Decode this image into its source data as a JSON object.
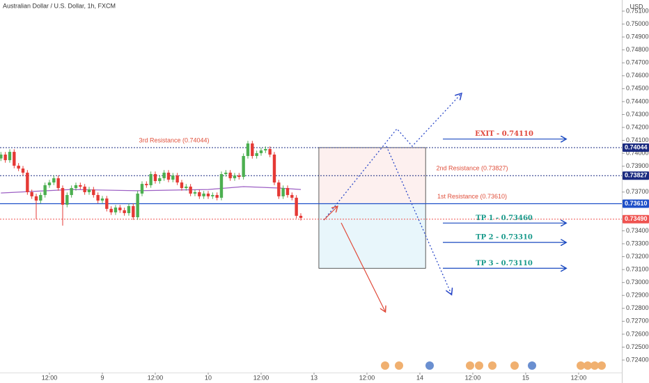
{
  "chart_data": {
    "type": "candlestick",
    "title": "Australian Dollar / U.S. Dollar, 1h, FXCM",
    "y_axis_label": "USD",
    "up_color": "#4caf50",
    "down_color": "#e53935",
    "x": [
      1,
      2,
      3,
      4,
      5,
      6,
      7,
      8,
      9,
      10,
      11,
      12,
      13,
      14,
      15,
      16,
      17,
      18,
      19,
      20,
      21,
      22,
      23,
      24,
      25,
      26,
      27,
      28,
      29,
      30,
      31,
      32,
      33,
      34,
      35,
      36,
      37,
      38,
      39,
      40,
      41,
      42,
      43,
      44,
      45,
      46,
      47,
      48,
      49,
      50,
      51,
      52,
      53,
      54,
      55,
      56,
      57,
      58,
      59,
      60,
      61,
      62,
      63,
      64,
      65,
      66,
      67,
      68,
      69
    ],
    "open": [
      0.7396,
      0.7399,
      0.73947,
      0.74011,
      0.73904,
      0.73882,
      0.7385,
      0.73699,
      0.73667,
      0.73634,
      0.73677,
      0.73753,
      0.73774,
      0.73807,
      0.73731,
      0.73602,
      0.73677,
      0.73731,
      0.73753,
      0.73742,
      0.73699,
      0.7372,
      0.73677,
      0.73634,
      0.7365,
      0.7357,
      0.73543,
      0.7358,
      0.73559,
      0.73537,
      0.73591,
      0.73505,
      0.73688,
      0.73763,
      0.73753,
      0.73839,
      0.73785,
      0.73807,
      0.7385,
      0.73796,
      0.73828,
      0.73774,
      0.73731,
      0.73742,
      0.73688,
      0.73699,
      0.73667,
      0.73688,
      0.73667,
      0.73677,
      0.73656,
      0.73839,
      0.7385,
      0.73807,
      0.73828,
      0.73817,
      0.73979,
      0.74076,
      0.73979,
      0.74001,
      0.74022,
      0.74033,
      0.7399,
      0.73774,
      0.73667,
      0.73731,
      0.73677,
      0.73656,
      0.73516
    ],
    "high": [
      0.7401,
      0.7401,
      0.74031,
      0.74031,
      0.73924,
      0.73902,
      0.7387,
      0.73719,
      0.73687,
      0.73697,
      0.73773,
      0.73794,
      0.73827,
      0.73827,
      0.73751,
      0.73697,
      0.73751,
      0.73773,
      0.73773,
      0.73762,
      0.7374,
      0.7374,
      0.73697,
      0.7367,
      0.7367,
      0.7359,
      0.736,
      0.736,
      0.73579,
      0.73611,
      0.73611,
      0.73708,
      0.73783,
      0.73783,
      0.73859,
      0.73859,
      0.73827,
      0.7387,
      0.7387,
      0.73848,
      0.73848,
      0.73794,
      0.73762,
      0.73762,
      0.73719,
      0.73719,
      0.73708,
      0.73708,
      0.73697,
      0.73697,
      0.73859,
      0.7387,
      0.7387,
      0.73848,
      0.73848,
      0.73999,
      0.74096,
      0.74096,
      0.74021,
      0.74042,
      0.74053,
      0.74053,
      0.7401,
      0.73794,
      0.73751,
      0.73751,
      0.73697,
      0.73676,
      0.73536
    ],
    "low": [
      0.7394,
      0.73927,
      0.73927,
      0.73884,
      0.73862,
      0.7383,
      0.73679,
      0.73647,
      0.7349,
      0.73614,
      0.73657,
      0.73733,
      0.73754,
      0.73711,
      0.7344,
      0.73582,
      0.73657,
      0.73711,
      0.73722,
      0.73679,
      0.73679,
      0.73657,
      0.73614,
      0.73614,
      0.7355,
      0.73523,
      0.73523,
      0.73539,
      0.73517,
      0.73517,
      0.73485,
      0.73485,
      0.73668,
      0.73733,
      0.73733,
      0.73765,
      0.73765,
      0.73787,
      0.73776,
      0.73776,
      0.73754,
      0.73711,
      0.73711,
      0.73668,
      0.73668,
      0.73647,
      0.73647,
      0.73647,
      0.73647,
      0.73636,
      0.73636,
      0.73819,
      0.73787,
      0.73787,
      0.73797,
      0.73797,
      0.73959,
      0.73959,
      0.73959,
      0.73981,
      0.74002,
      0.7397,
      0.73754,
      0.73647,
      0.73647,
      0.73657,
      0.73636,
      0.73496,
      0.7348
    ],
    "close": [
      0.7399,
      0.73947,
      0.74011,
      0.73904,
      0.73882,
      0.7385,
      0.73699,
      0.73667,
      0.73634,
      0.73677,
      0.73753,
      0.73774,
      0.73807,
      0.73731,
      0.73602,
      0.73677,
      0.73731,
      0.73753,
      0.73742,
      0.73699,
      0.7372,
      0.73677,
      0.73634,
      0.7365,
      0.7357,
      0.73543,
      0.7358,
      0.73559,
      0.73537,
      0.73591,
      0.73505,
      0.73688,
      0.73763,
      0.73753,
      0.73839,
      0.73785,
      0.73807,
      0.7385,
      0.73796,
      0.73828,
      0.73774,
      0.73731,
      0.73742,
      0.73688,
      0.73699,
      0.73667,
      0.73688,
      0.73667,
      0.73677,
      0.73656,
      0.73839,
      0.7385,
      0.73807,
      0.73828,
      0.73817,
      0.73979,
      0.74076,
      0.73979,
      0.74001,
      0.74022,
      0.74033,
      0.7399,
      0.73774,
      0.73667,
      0.73731,
      0.73677,
      0.73656,
      0.73516,
      0.735
    ],
    "ma": {
      "color": "#9c5fc4",
      "x": [
        1,
        17,
        32,
        48,
        56,
        64,
        69
      ],
      "values": [
        0.73693,
        0.7372,
        0.7371,
        0.7372,
        0.73742,
        0.73731,
        0.7372
      ]
    },
    "xlim": [
      0.79,
      141.8
    ],
    "xticks": [
      {
        "value": 12,
        "label": "12:00"
      },
      {
        "value": 24,
        "label": "9"
      },
      {
        "value": 36,
        "label": "12:00"
      },
      {
        "value": 48,
        "label": "10"
      },
      {
        "value": 60,
        "label": "12:00"
      },
      {
        "value": 72,
        "label": "13"
      },
      {
        "value": 84,
        "label": "12:00"
      },
      {
        "value": 96,
        "label": "14"
      },
      {
        "value": 108,
        "label": "12:00"
      },
      {
        "value": 120,
        "label": "15"
      },
      {
        "value": 132,
        "label": "12:00"
      }
    ],
    "ylim": [
      0.723031,
      0.751862
    ],
    "yticks": [
      {
        "value": 0.751,
        "label": "0.75100"
      },
      {
        "value": 0.75,
        "label": "0.75000"
      },
      {
        "value": 0.749,
        "label": "0.74900"
      },
      {
        "value": 0.748,
        "label": "0.74800"
      },
      {
        "value": 0.747,
        "label": "0.74700"
      },
      {
        "value": 0.746,
        "label": "0.74600"
      },
      {
        "value": 0.745,
        "label": "0.74500"
      },
      {
        "value": 0.744,
        "label": "0.74400"
      },
      {
        "value": 0.743,
        "label": "0.74300"
      },
      {
        "value": 0.742,
        "label": "0.74200"
      },
      {
        "value": 0.741,
        "label": "0.74100"
      },
      {
        "value": 0.74,
        "label": "0.74000"
      },
      {
        "value": 0.739,
        "label": "0.73900"
      },
      {
        "value": 0.737,
        "label": "0.73700"
      },
      {
        "value": 0.734,
        "label": "0.73400"
      },
      {
        "value": 0.733,
        "label": "0.73300"
      },
      {
        "value": 0.732,
        "label": "0.73200"
      },
      {
        "value": 0.731,
        "label": "0.73100"
      },
      {
        "value": 0.73,
        "label": "0.73000"
      },
      {
        "value": 0.729,
        "label": "0.72900"
      },
      {
        "value": 0.728,
        "label": "0.72800"
      },
      {
        "value": 0.727,
        "label": "0.72700"
      },
      {
        "value": 0.726,
        "label": "0.72600"
      },
      {
        "value": 0.725,
        "label": "0.72500"
      },
      {
        "value": 0.724,
        "label": "0.72400"
      }
    ],
    "price_lines": [
      {
        "value": 0.74044,
        "label": "0.74044",
        "color": "#1a2a80",
        "dashed": true,
        "note": "3rd Resistance (0.74044)"
      },
      {
        "value": 0.73827,
        "label": "0.73827",
        "color": "#1a2a80",
        "dashed": true,
        "note": "2nd Resistance (0.73827)"
      },
      {
        "value": 0.7361,
        "label": "0.73610",
        "color": "#1e4fc8",
        "dashed": false,
        "note": "1st Resistance (0.73610)"
      },
      {
        "value": 0.7349,
        "label": "0.73490",
        "color": "#ef5350",
        "dashed": true
      }
    ],
    "note_color": "#e0503c",
    "targets": [
      {
        "text": "EXIT - 0.74110",
        "value": 0.7411,
        "color": "#e0453a"
      },
      {
        "text": "TP 1 - 0.73460",
        "value": 0.7346,
        "color": "#17998a"
      },
      {
        "text": "TP 2 - 0.73310",
        "value": 0.7331,
        "color": "#17998a"
      },
      {
        "text": "TP 3 - 0.73110",
        "value": 0.7311,
        "color": "#17998a"
      }
    ],
    "target_arrow_color": "#1848c0",
    "zones": [
      {
        "x": [
          73.1,
          97.3
        ],
        "y": [
          0.7361,
          0.74044
        ],
        "color": "#fdf0ef"
      },
      {
        "x": [
          73.1,
          97.3
        ],
        "y": [
          0.7311,
          0.7361
        ],
        "color": "#e8f6fb"
      }
    ]
  }
}
